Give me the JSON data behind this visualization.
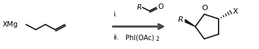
{
  "background": "#ffffff",
  "line_color": "#1a1a1a",
  "text_color": "#000000",
  "fig_width": 3.78,
  "fig_height": 0.72,
  "dpi": 100,
  "left_label": "XMg",
  "label_i": "i.",
  "label_ii": "ii.",
  "reagent_ii_text": "PhI(OAc)",
  "reagent_ii_sub": "2",
  "right_O": "O",
  "right_R": "R",
  "right_X": "X"
}
